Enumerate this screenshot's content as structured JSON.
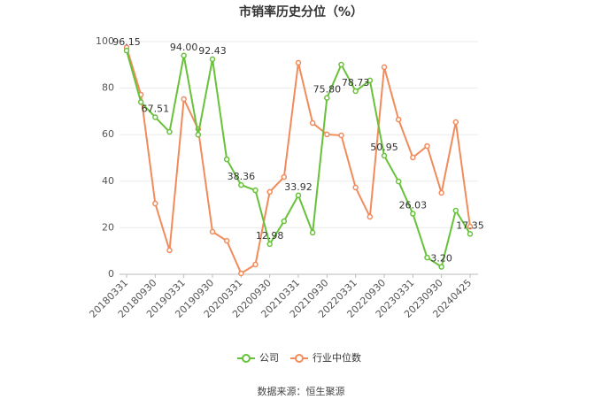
{
  "chart_data": {
    "type": "line",
    "title": "市销率历史分位（%）",
    "source": "数据来源：恒生聚源",
    "categories": [
      "20180331",
      null,
      "20180930",
      null,
      "20190331",
      null,
      "20190930",
      null,
      "20200331",
      null,
      "20200930",
      null,
      "20210331",
      null,
      "20210930",
      null,
      "20220331",
      null,
      "20220930",
      null,
      "20230331",
      null,
      "20230930",
      null,
      "20240425"
    ],
    "series": [
      {
        "name": "公司",
        "color": "#67c23a",
        "values": [
          96.15,
          74,
          67.51,
          61.2,
          94.0,
          60,
          92.43,
          49.4,
          38.36,
          36.1,
          12.98,
          22.8,
          33.92,
          17.9,
          75.8,
          90.1,
          78.73,
          83.3,
          50.95,
          39.9,
          26.03,
          7.2,
          3.2,
          27.4,
          17.35
        ],
        "value_labels": [
          "96.15",
          null,
          "67.51",
          null,
          "94.00",
          null,
          "92.43",
          null,
          "38.36",
          null,
          "12.98",
          null,
          "33.92",
          null,
          "75.80",
          null,
          "78.73",
          null,
          "50.95",
          null,
          "26.03",
          null,
          "3.20",
          null,
          "17.35"
        ]
      },
      {
        "name": "行业中位数",
        "color": "#f28b5b",
        "values": [
          97.5,
          77.2,
          30.4,
          10.3,
          75.3,
          62.4,
          18.3,
          14.4,
          0.4,
          4.2,
          35.4,
          41.8,
          90.9,
          65,
          60.1,
          59.7,
          37.3,
          24.7,
          89,
          66.5,
          50.2,
          55.1,
          35,
          65.4,
          20.5
        ]
      }
    ],
    "ylim": [
      0,
      100
    ],
    "yticks": [
      0,
      20,
      40,
      60,
      80,
      100
    ],
    "grid": true,
    "legend": "bottom"
  }
}
